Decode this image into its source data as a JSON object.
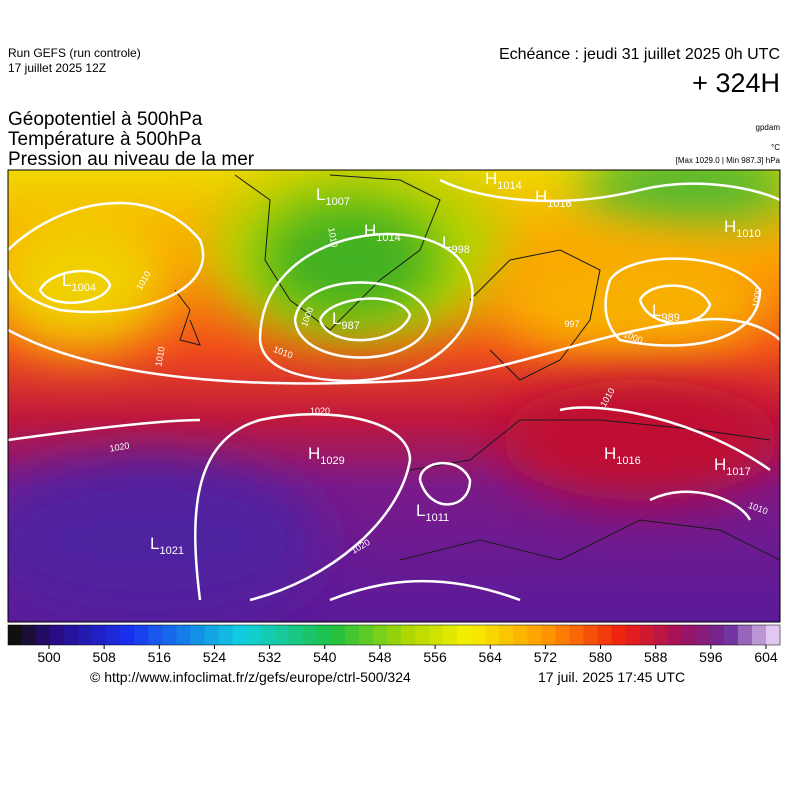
{
  "header": {
    "run": "Run GEFS (run controle)",
    "run_date": "17 juillet 2025 12Z",
    "valid": "Echéance : jeudi 31 juillet 2025 0h UTC",
    "lead": "+ 324H",
    "titles": [
      "Géopotentiel à 500hPa",
      "Température à 500hPa",
      "Pression au niveau de la mer"
    ],
    "units": [
      "gpdam",
      "°C",
      "[Max 1029.0 | Min 987.3] hPa"
    ]
  },
  "map": {
    "centers": [
      {
        "letter": "H",
        "value": "1014"
      },
      {
        "letter": "H",
        "value": "1016"
      },
      {
        "letter": "L",
        "value": "1007"
      },
      {
        "letter": "H",
        "value": "1014"
      },
      {
        "letter": "L",
        "value": "998"
      },
      {
        "letter": "H",
        "value": "1010"
      },
      {
        "letter": "L",
        "value": "1004"
      },
      {
        "letter": "L",
        "value": "987"
      },
      {
        "letter": "L",
        "value": "989"
      },
      {
        "letter": "H",
        "value": "1029"
      },
      {
        "letter": "H",
        "value": "1016"
      },
      {
        "letter": "H",
        "value": "1017"
      },
      {
        "letter": "L",
        "value": "1011"
      },
      {
        "letter": "L",
        "value": "1021"
      }
    ],
    "isobar_labels": [
      "1010",
      "1010",
      "1000",
      "1010",
      "997",
      "1000",
      "1000",
      "1020",
      "1020",
      "1020",
      "1010",
      "1010",
      "1010"
    ]
  },
  "colorbar": {
    "ticks": [
      500,
      508,
      516,
      524,
      532,
      540,
      548,
      556,
      564,
      572,
      580,
      588,
      596,
      604
    ]
  },
  "footer": {
    "source": "© http://www.infoclimat.fr/z/gefs/europe/ctrl-500/324",
    "timestamp": "17 juil. 2025 17:45 UTC"
  }
}
